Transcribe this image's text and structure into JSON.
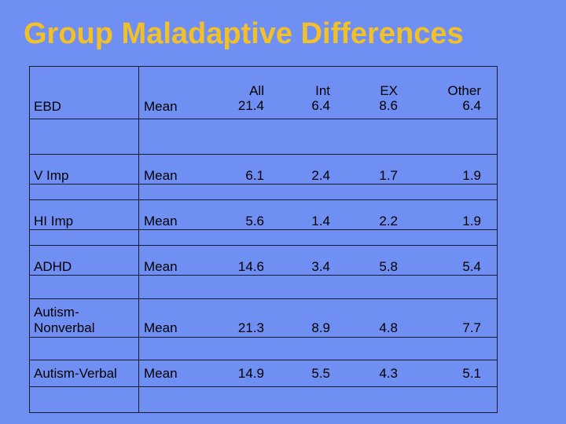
{
  "title": "Group Maladaptive Differences",
  "header": {
    "group": "EBD",
    "stat": "Mean",
    "columns": [
      {
        "label": "All",
        "value": "21.4"
      },
      {
        "label": "Int",
        "value": "6.4"
      },
      {
        "label": "EX",
        "value": "8.6"
      },
      {
        "label": "Other",
        "value": "6.4"
      }
    ]
  },
  "rows": [
    {
      "group": "V Imp",
      "stat": "Mean",
      "values": [
        "6.1",
        "2.4",
        "1.7",
        "1.9"
      ]
    },
    {
      "group": "HI Imp",
      "stat": "Mean",
      "values": [
        "5.6",
        "1.4",
        "2.2",
        "1.9"
      ]
    },
    {
      "group": "ADHD",
      "stat": "Mean",
      "values": [
        "14.6",
        "3.4",
        "5.8",
        "5.4"
      ]
    },
    {
      "group_line1": "Autism-",
      "group_line2": "Nonverbal",
      "stat": "Mean",
      "values": [
        "21.3",
        "8.9",
        "4.8",
        "7.7"
      ]
    },
    {
      "group": "Autism-Verbal",
      "stat": "Mean",
      "values": [
        "14.9",
        "5.5",
        "4.3",
        "5.1"
      ]
    }
  ]
}
